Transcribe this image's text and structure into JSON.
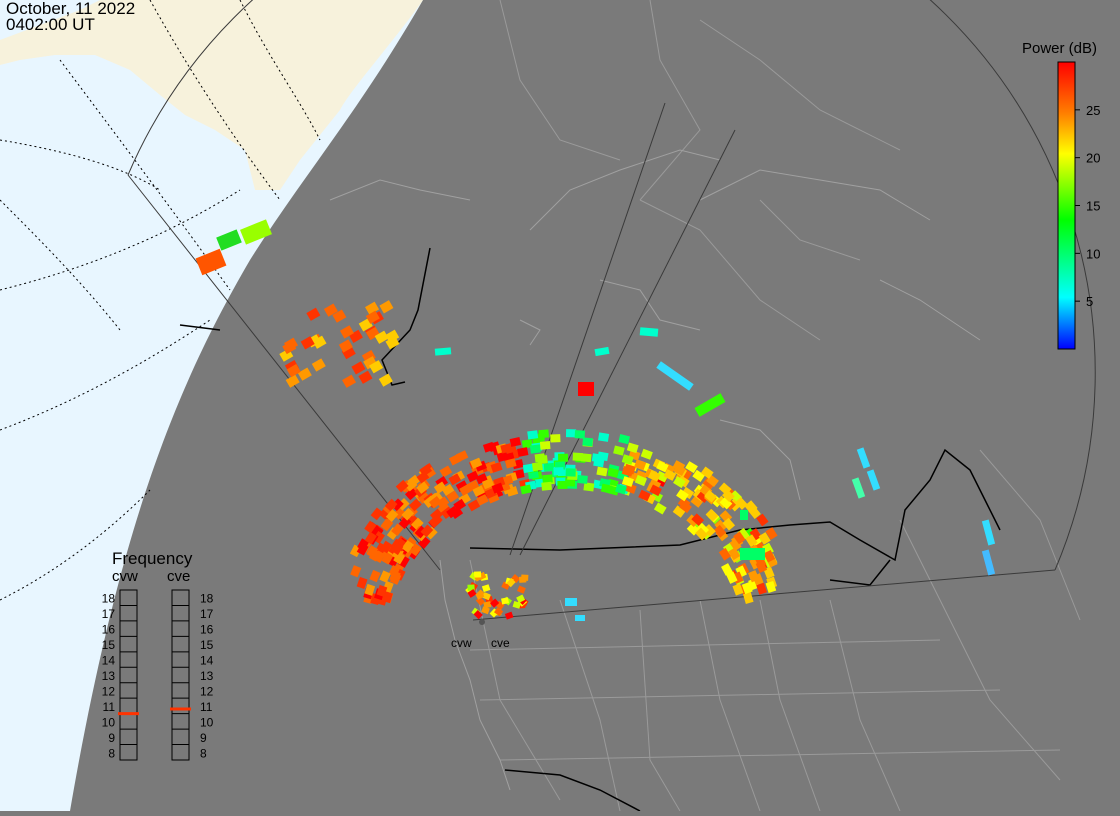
{
  "header": {
    "date": "October, 11 2022",
    "time": "0402:00 UT"
  },
  "colorbar": {
    "title": "Power (dB)",
    "ticks": [
      "5",
      "10",
      "15",
      "20",
      "25"
    ],
    "tick_values": [
      5,
      10,
      15,
      20,
      25
    ],
    "range": [
      0,
      30
    ],
    "colors": [
      "#0000ff",
      "#00ffff",
      "#00ff00",
      "#ffff00",
      "#ff0000"
    ]
  },
  "frequency_panel": {
    "title": "Frequency",
    "radars": [
      {
        "name": "cvw",
        "value_mhz": 10.5
      },
      {
        "name": "cve",
        "value_mhz": 10.8
      }
    ],
    "scale": [
      "18",
      "17",
      "16",
      "15",
      "14",
      "13",
      "12",
      "11",
      "10",
      "9",
      "8"
    ],
    "marker_color": "#ff3300"
  },
  "radar_sites": [
    {
      "label": "cvw"
    },
    {
      "label": "cve"
    }
  ],
  "colors": {
    "land": "#7a7a7a",
    "sunlit_land": "#f7f2dc",
    "sunlit_ocean": "#e8f6ff",
    "boundary": "#9a9a9a",
    "coast": "#000000"
  }
}
